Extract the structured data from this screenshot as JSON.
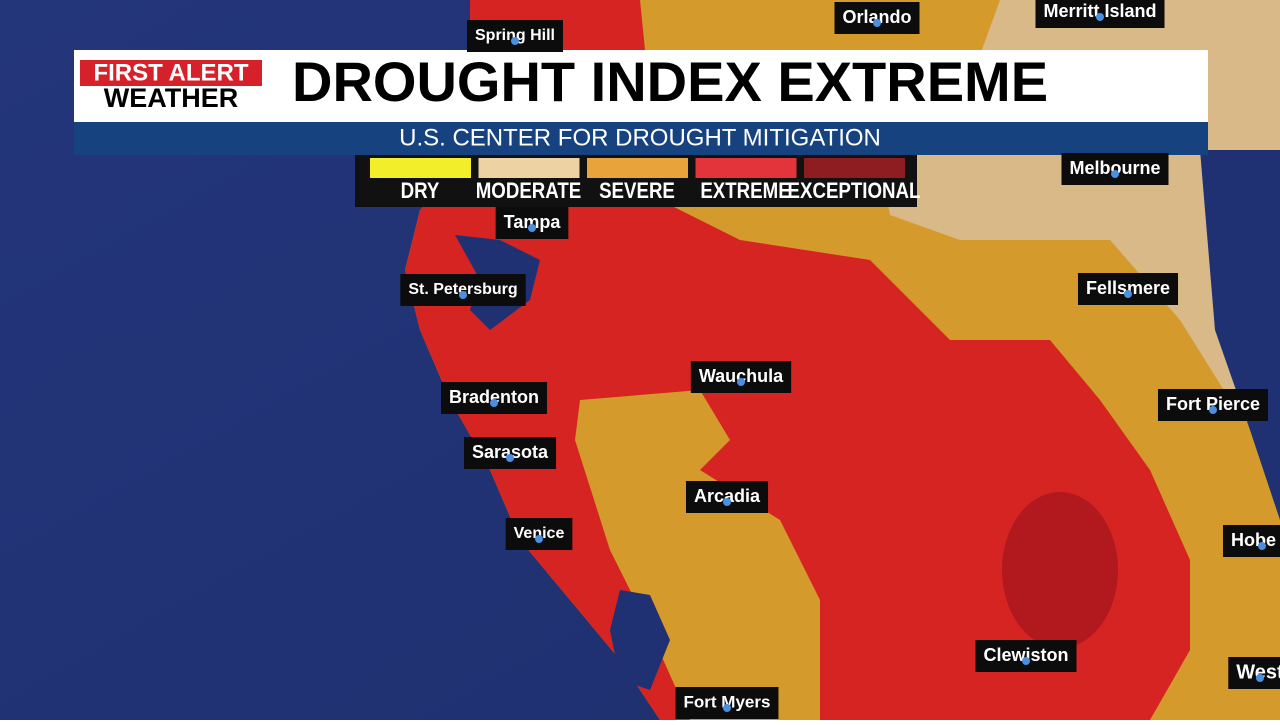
{
  "logo": {
    "line1": "FIRST ALERT",
    "line2": "WEATHER"
  },
  "header": {
    "title": "DROUGHT INDEX EXTREME",
    "subtitle": "U.S. CENTER FOR DROUGHT MITIGATION"
  },
  "legend": [
    "DRY",
    "MODERATE",
    "SEVERE",
    "EXTREME",
    "EXCEPTIONAL"
  ],
  "cities": [
    "Spring Hill",
    "Orlando",
    "Merritt Island",
    "Melbourne",
    "Tampa",
    "St. Petersburg",
    "Fellsmere",
    "Wauchula",
    "Bradenton",
    "Fort Pierce",
    "Sarasota",
    "Arcadia",
    "Venice",
    "Hobe S",
    "Clewiston",
    "West",
    "Fort Myers"
  ]
}
